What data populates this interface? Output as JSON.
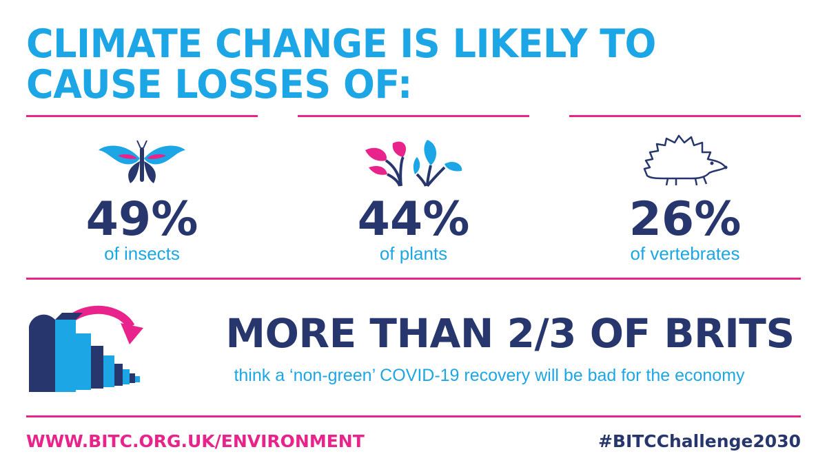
{
  "title": "CLIMATE CHANGE IS LIKELY TO CAUSE LOSSES OF:",
  "stats": [
    {
      "value": "49%",
      "label": "of insects",
      "icon": "butterfly-icon"
    },
    {
      "value": "44%",
      "label": "of plants",
      "icon": "plants-icon"
    },
    {
      "value": "26%",
      "label": "of vertebrates",
      "icon": "hedgehog-icon"
    }
  ],
  "headline": "MORE THAN 2/3 OF BRITS",
  "subtext": "think a ‘non-green’ COVID-19 recovery will be bad for the economy",
  "footer": {
    "url": "WWW.BITC.ORG.UK/ENVIRONMENT",
    "hashtag": "#BITCChallenge2030"
  },
  "colors": {
    "cyan": "#1da6e6",
    "navy": "#27376e",
    "magenta": "#e8238c"
  }
}
